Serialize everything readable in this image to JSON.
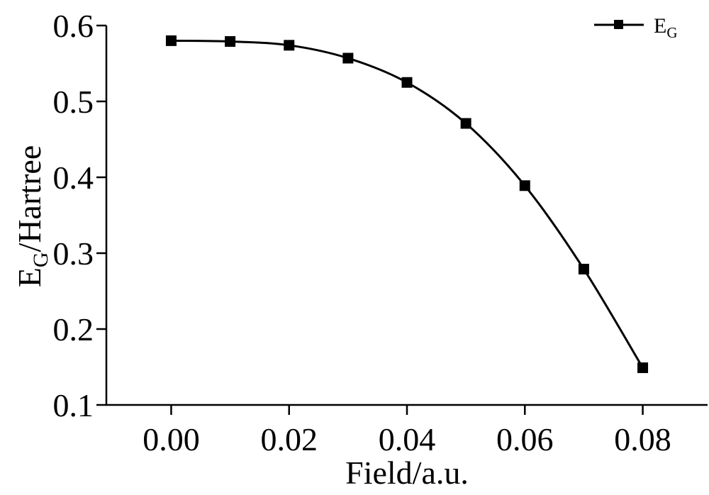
{
  "chart_data": {
    "type": "line",
    "x": [
      0.0,
      0.01,
      0.02,
      0.03,
      0.04,
      0.05,
      0.06,
      0.07,
      0.08
    ],
    "series": [
      {
        "name": "E",
        "name_subscript": "G",
        "values": [
          0.58,
          0.579,
          0.574,
          0.557,
          0.525,
          0.471,
          0.389,
          0.279,
          0.149
        ],
        "color": "#000000",
        "marker": "square"
      }
    ],
    "xlim": [
      -0.011,
      0.091
    ],
    "ylim": [
      0.1,
      0.6
    ],
    "xticks": [
      "0.00",
      "0.02",
      "0.04",
      "0.06",
      "0.08"
    ],
    "yticks": [
      "0.1",
      "0.2",
      "0.3",
      "0.4",
      "0.5",
      "0.6"
    ],
    "xlabel": "Field/a.u.",
    "ylabel": "E",
    "ylabel_subscript": "G",
    "ylabel_suffix": "/Hartree",
    "grid": false,
    "legend_position": "top-right"
  }
}
